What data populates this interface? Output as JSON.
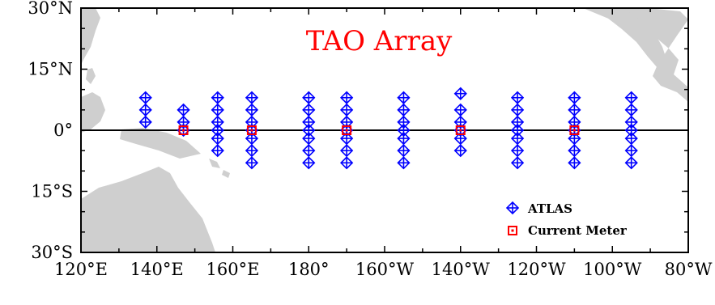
{
  "title": "TAO Array",
  "colors": {
    "atlas": "#0000ff",
    "current_meter": "#ff0000",
    "land": "#cfcfcf",
    "title": "#ff0000"
  },
  "icons": {
    "atlas": "diamond-cross-marker",
    "current_meter": "square-marker"
  },
  "legend": {
    "atlas_label": "ATLAS",
    "current_meter_label": "Current Meter"
  },
  "y_ticks": [
    "30°N",
    "15°N",
    "0°",
    "15°S",
    "30°S"
  ],
  "x_ticks": [
    "120°E",
    "140°E",
    "160°E",
    "180°",
    "160°W",
    "140°W",
    "120°W",
    "100°W",
    "80°W"
  ],
  "map_extent": {
    "lon_range_east": [
      120,
      280
    ],
    "lat_range": [
      -30,
      30
    ]
  },
  "moorings": {
    "atlas": [
      {
        "lon": 137,
        "lats": [
          8,
          5,
          2
        ]
      },
      {
        "lon": 147,
        "lats": [
          5,
          2,
          0
        ]
      },
      {
        "lon": 156,
        "lats": [
          8,
          5,
          2,
          0,
          -2,
          -5
        ]
      },
      {
        "lon": 165,
        "lats": [
          8,
          5,
          2,
          0,
          -2,
          -5,
          -8
        ]
      },
      {
        "lon": 180,
        "lats": [
          8,
          5,
          2,
          0,
          -2,
          -5,
          -8
        ]
      },
      {
        "lon": 190,
        "lats": [
          8,
          5,
          2,
          0,
          -2,
          -5,
          -8
        ]
      },
      {
        "lon": 205,
        "lats": [
          8,
          5,
          2,
          0,
          -2,
          -5,
          -8
        ]
      },
      {
        "lon": 220,
        "lats": [
          9,
          5,
          2,
          0,
          -2,
          -5
        ]
      },
      {
        "lon": 235,
        "lats": [
          8,
          5,
          2,
          0,
          -2,
          -5,
          -8
        ]
      },
      {
        "lon": 250,
        "lats": [
          8,
          5,
          2,
          0,
          -2,
          -5,
          -8
        ]
      },
      {
        "lon": 265,
        "lats": [
          8,
          5,
          2,
          0,
          -2,
          -5,
          -8
        ]
      }
    ],
    "current_meter": [
      {
        "lon": 147,
        "lat": 0
      },
      {
        "lon": 165,
        "lat": 0
      },
      {
        "lon": 190,
        "lat": 0
      },
      {
        "lon": 220,
        "lat": 0
      },
      {
        "lon": 250,
        "lat": 0
      }
    ]
  }
}
